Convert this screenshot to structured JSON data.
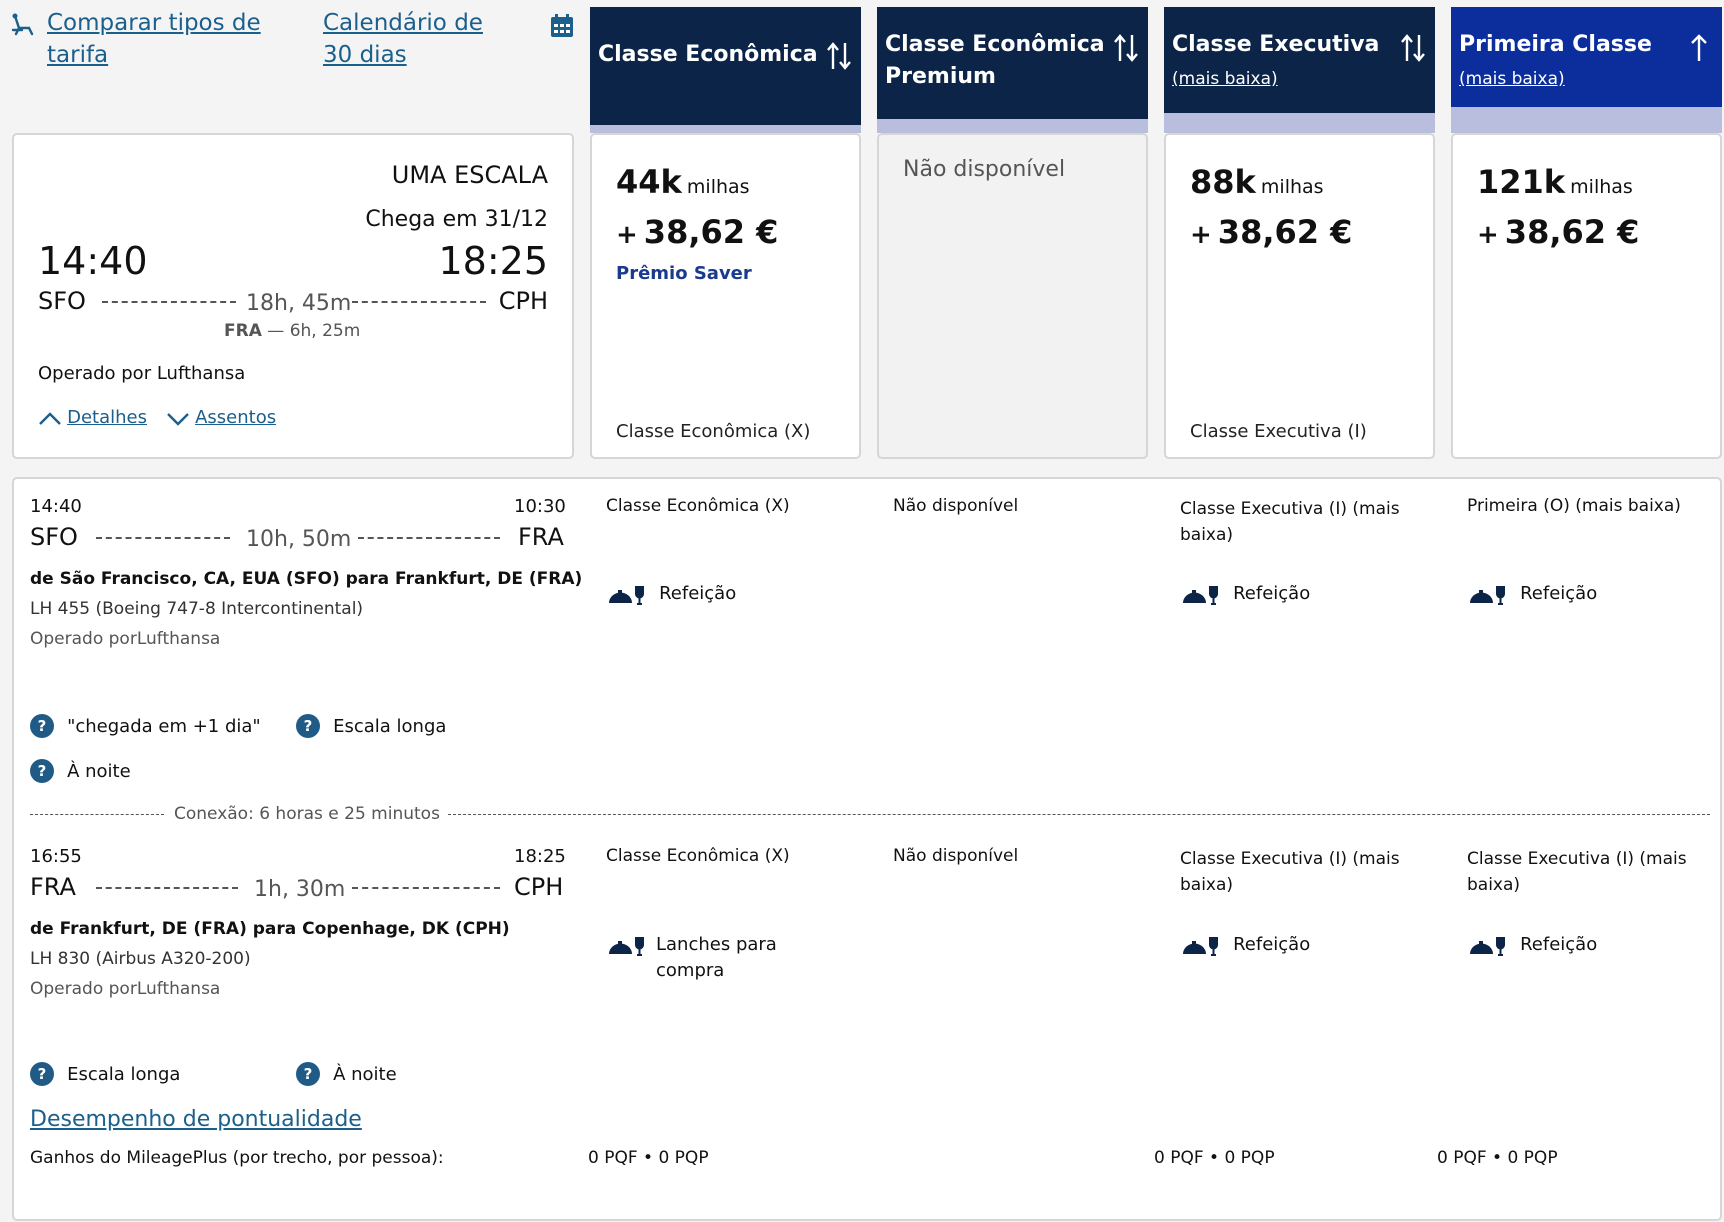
{
  "top": {
    "compare_label_1": "Comparar tipos de",
    "compare_label_2": "tarifa",
    "calendar_label_1": "Calendário de",
    "calendar_label_2": "30 dias"
  },
  "columns": [
    {
      "title1": "Classe Econômica",
      "title2": "",
      "sub": "",
      "bg": "#0b2447"
    },
    {
      "title1": "Classe Econômica",
      "title2": "Premium",
      "sub": "",
      "bg": "#0b2447"
    },
    {
      "title1": "Classe Executiva",
      "title2": "",
      "sub": "(mais baixa)",
      "bg": "#0b2447"
    },
    {
      "title1": "Primeira Classe",
      "title2": "",
      "sub": "(mais baixa)",
      "bg": "#0c2e9c"
    }
  ],
  "summary": {
    "stops": "UMA ESCALA",
    "arrives": "Chega em 31/12",
    "depart_time": "14:40",
    "arrive_time": "18:25",
    "origin": "SFO",
    "destination": "CPH",
    "duration": "18h, 45m",
    "layover_airport": "FRA",
    "layover_time": "6h, 25m",
    "operated": "Operado por Lufthansa",
    "details_link": "Detalhes",
    "seats_link": "Assentos"
  },
  "fares": [
    {
      "miles": "44k",
      "unit": "milhas",
      "plus": "+",
      "price": "38,62 €",
      "badge": "Prêmio Saver",
      "cabin": "Classe Econômica (X)"
    },
    {
      "na": "Não disponível"
    },
    {
      "miles": "88k",
      "unit": "milhas",
      "plus": "+",
      "price": "38,62 €",
      "cabin": "Classe Executiva (I)"
    },
    {
      "miles": "121k",
      "unit": "milhas",
      "plus": "+",
      "price": "38,62 €",
      "cabin": ""
    }
  ],
  "seg1": {
    "dep": "14:40",
    "arr": "10:30",
    "from": "SFO",
    "to": "FRA",
    "duration": "10h, 50m",
    "route": "de São Francisco, CA, EUA (SFO) para Frankfurt, DE (FRA)",
    "flight": "LH 455 (Boeing 747-8 Intercontinental)",
    "operated": "Operado porLufthansa",
    "cabins": [
      "Classe Econômica (X)",
      "Não disponível",
      "Classe Executiva (I) (mais baixa)",
      "Primeira (O) (mais baixa)"
    ],
    "meals": [
      "Refeição",
      "",
      "Refeição",
      "Refeição"
    ],
    "notes": [
      "\"chegada em +1 dia\"",
      "Escala longa",
      "À noite"
    ]
  },
  "connection": "Conexão: 6 horas e 25 minutos",
  "seg2": {
    "dep": "16:55",
    "arr": "18:25",
    "from": "FRA",
    "to": "CPH",
    "duration": "1h, 30m",
    "route": "de Frankfurt, DE (FRA) para Copenhage, DK (CPH)",
    "flight": "LH 830 (Airbus A320-200)",
    "operated": "Operado porLufthansa",
    "cabins": [
      "Classe Econômica (X)",
      "Não disponível",
      "Classe Executiva (I) (mais baixa)",
      "Classe Executiva (I) (mais baixa)"
    ],
    "meals": [
      "Lanches para compra",
      "",
      "Refeição",
      "Refeição"
    ],
    "notes": [
      "Escala longa",
      "À noite"
    ]
  },
  "footer": {
    "ontime_link": "Desempenho de pontualidade",
    "earnings_label": "Ganhos do MileagePlus (por trecho, por pessoa):",
    "earnings": [
      "0 PQF • 0 PQP",
      "",
      "0 PQF • 0 PQP",
      "0 PQF • 0 PQP"
    ]
  },
  "colors": {
    "accent": "#1b5f8c",
    "header_dark": "#0b2447",
    "header_first": "#0c2e9c",
    "header_bar": "#b9bedf",
    "saver": "#1a3a8f"
  }
}
